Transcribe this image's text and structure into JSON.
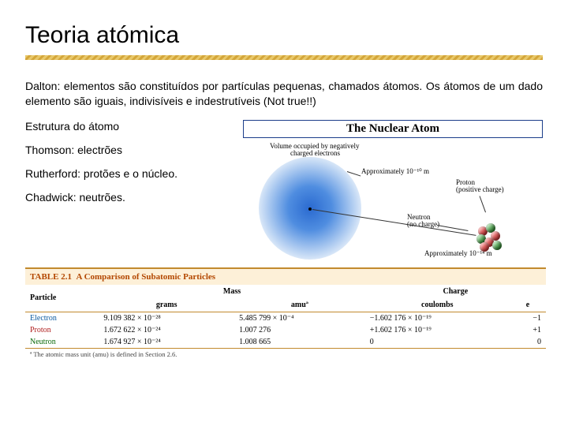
{
  "title": "Teoria atómica",
  "paragraph": "Dalton: elementos são constituídos por partículas pequenas, chamados átomos. Os átomos de um dado elemento são iguais, indivisíveis e indestrutíveis (Not true!!)",
  "lines": {
    "estrutura": "Estrutura do átomo",
    "thomson": "Thomson: electrões",
    "rutherford": "Rutherford: protões e o núcleo.",
    "chadwick": "Chadwick: neutrões."
  },
  "diagram": {
    "box_title": "The Nuclear Atom",
    "cloud_l1": "Volume occupied by negatively",
    "cloud_l2": "charged electrons",
    "cloud_l3": "Approximately 10⁻¹⁰ m",
    "proton_l1": "Proton",
    "proton_l2": "(positive charge)",
    "neutron_l1": "Neutron",
    "neutron_l2": "(no charge)",
    "size2_l1": "Approximately 10⁻¹⁴ m"
  },
  "table": {
    "caption_label": "TABLE 2.1",
    "caption_text": "A Comparison of Subatomic Particles",
    "group_mass": "Mass",
    "group_charge": "Charge",
    "col_particle": "Particle",
    "col_grams": "grams",
    "col_amu": "amuª",
    "col_coulombs": "coulombs",
    "col_e": "e",
    "rows": [
      {
        "name": "Electron",
        "name_color": "#0a5aa0",
        "grams": "9.109 382 × 10⁻²⁸",
        "amu": "5.485 799 × 10⁻⁴",
        "coul": "−1.602 176 × 10⁻¹⁹",
        "e": "−1"
      },
      {
        "name": "Proton",
        "name_color": "#b02020",
        "grams": "1.672 622 × 10⁻²⁴",
        "amu": "1.007 276",
        "coul": "+1.602 176 × 10⁻¹⁹",
        "e": "+1"
      },
      {
        "name": "Neutron",
        "name_color": "#0a6a0a",
        "grams": "1.674 927 × 10⁻²⁴",
        "amu": "1.008 665",
        "coul": "0",
        "e": "0"
      }
    ],
    "footnote": "ª The atomic mass unit (amu) is defined in Section 2.6."
  },
  "colors": {
    "rule": "#d4a63a",
    "box_border": "#1b3d8a"
  }
}
